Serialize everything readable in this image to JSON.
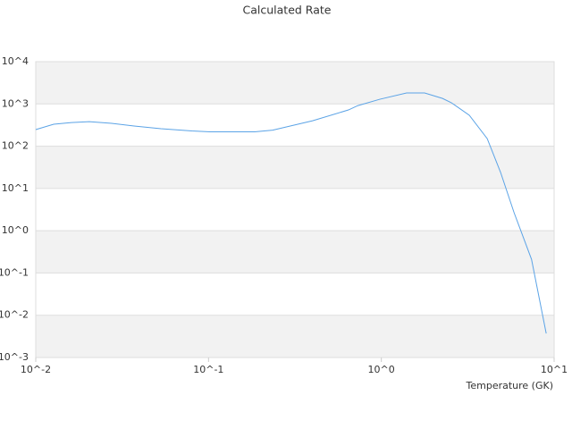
{
  "chart_data": {
    "type": "line",
    "title": "Calculated Rate",
    "x_label": "Temperature (GK)",
    "x_log": true,
    "y_log": true,
    "grid": true,
    "bands": true,
    "xlim": [
      0.01,
      10
    ],
    "ylim": [
      0.001,
      10000
    ],
    "xticks": [
      {
        "value": 0.01,
        "label": "10^-2"
      },
      {
        "value": 0.1,
        "label": "10^-1"
      },
      {
        "value": 1,
        "label": "10^0"
      },
      {
        "value": 10,
        "label": "10^1"
      }
    ],
    "yticks": [
      {
        "value": 0.001,
        "label": "10^-3"
      },
      {
        "value": 0.01,
        "label": "10^-2"
      },
      {
        "value": 0.1,
        "label": "10^-1"
      },
      {
        "value": 1,
        "label": "10^0"
      },
      {
        "value": 10,
        "label": "10^1"
      },
      {
        "value": 100,
        "label": "10^2"
      },
      {
        "value": 1000,
        "label": "10^3"
      },
      {
        "value": 10000,
        "label": "10^4"
      }
    ],
    "x": [
      0.01,
      0.0127,
      0.0161,
      0.0204,
      0.0275,
      0.0371,
      0.053,
      0.08,
      0.102,
      0.185,
      0.235,
      0.4,
      0.645,
      0.73,
      0.98,
      1.4,
      1.78,
      2.26,
      2.54,
      3.23,
      4.1,
      4.9,
      5.86,
      7.4,
      9.0
    ],
    "series": [
      {
        "color": "#5ba3e6",
        "values": [
          247,
          330,
          363,
          380,
          347,
          300,
          259,
          229,
          219,
          219,
          240,
          400,
          720,
          910,
          1290,
          1820,
          1820,
          1350,
          1070,
          540,
          151,
          24,
          2.7,
          0.21,
          0.0037
        ]
      }
    ]
  }
}
